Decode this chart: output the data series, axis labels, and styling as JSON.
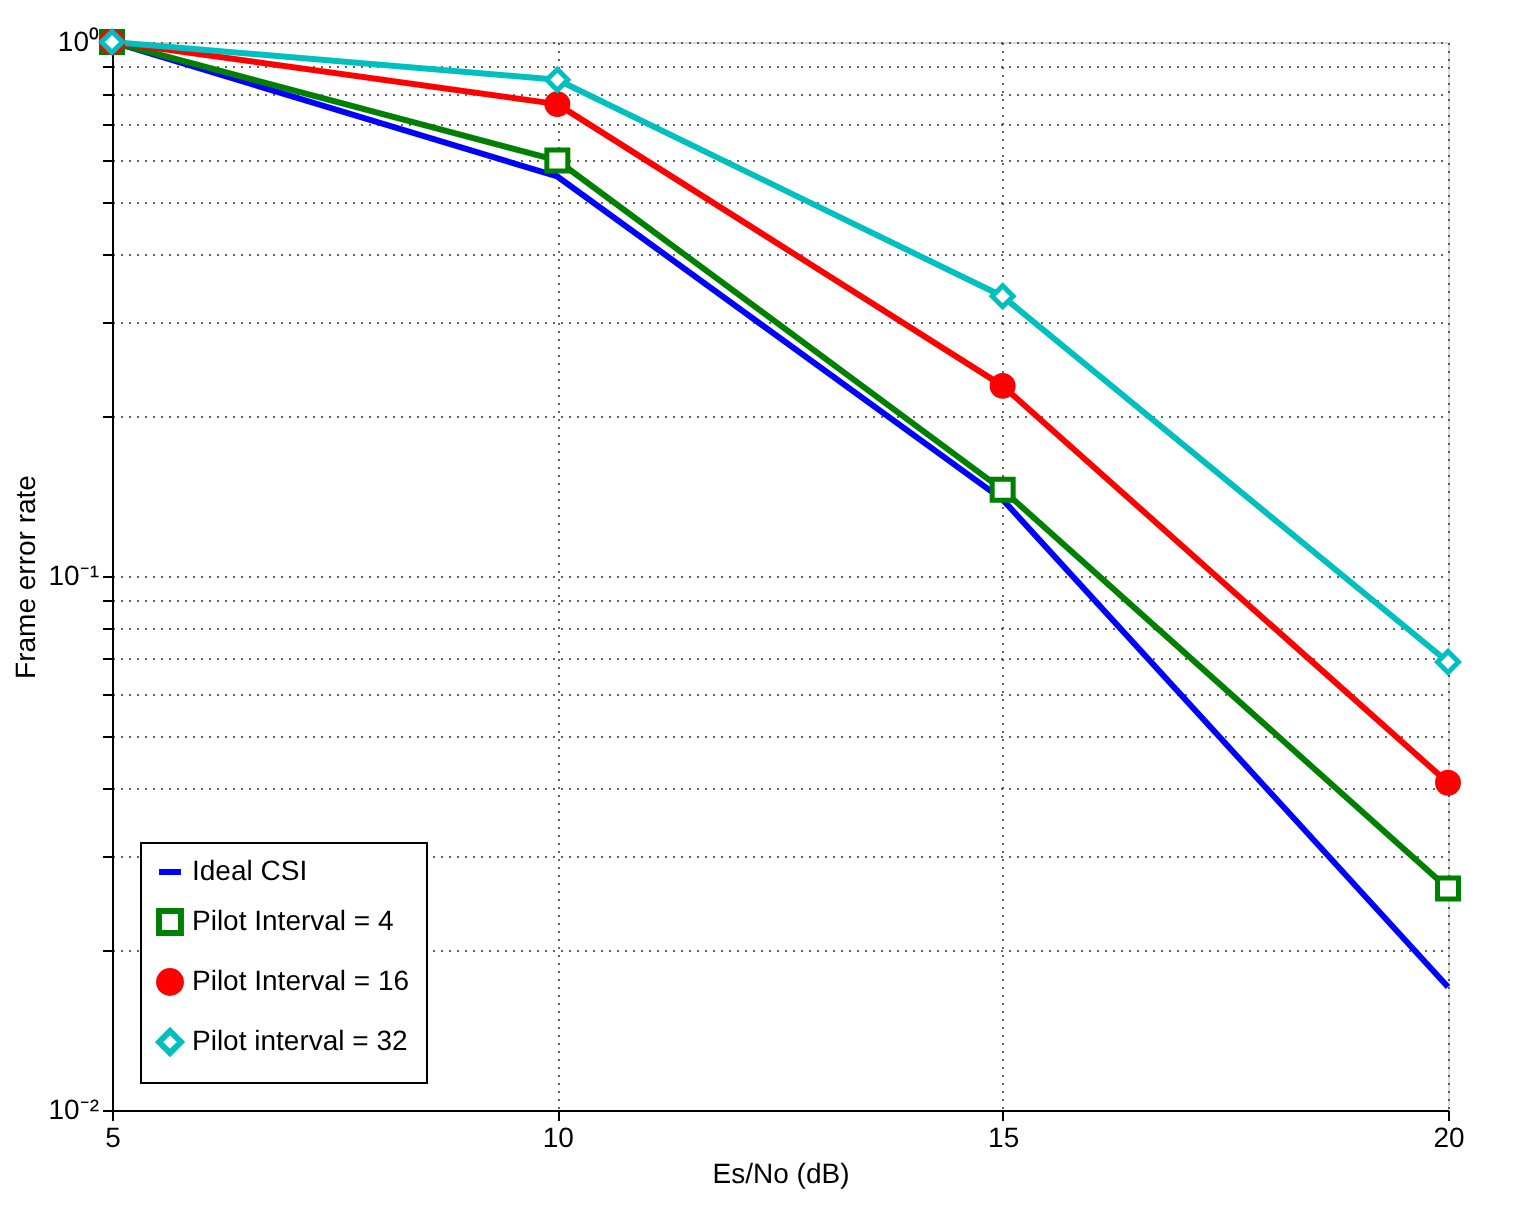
{
  "chart_data": {
    "type": "line",
    "xlabel": "Es/No (dB)",
    "ylabel": "Frame error rate",
    "x": [
      5,
      10,
      15,
      20
    ],
    "series": [
      {
        "name": "Ideal CSI",
        "color": "#0000ff",
        "marker": "none",
        "values": [
          1.0,
          0.56,
          0.139,
          0.017
        ]
      },
      {
        "name": "Pilot Interval = 4",
        "color": "#008000",
        "marker": "square",
        "values": [
          1.0,
          0.6,
          0.145,
          0.026
        ]
      },
      {
        "name": "Pilot Interval = 16",
        "color": "#ff0000",
        "marker": "circle",
        "values": [
          1.0,
          0.765,
          0.227,
          0.041
        ]
      },
      {
        "name": "Pilot interval = 32",
        "color": "#00bfbf",
        "marker": "diamond",
        "values": [
          1.0,
          0.85,
          0.334,
          0.069
        ]
      }
    ],
    "log": true,
    "xlim": [
      5,
      20
    ],
    "xticks": [
      5,
      10,
      15,
      20
    ],
    "ylim": [
      0.01,
      1
    ],
    "yticks": [
      {
        "value": 0.01,
        "label": "10⁻²"
      },
      {
        "value": 0.02,
        "label": null
      },
      {
        "value": 0.03,
        "label": null
      },
      {
        "value": 0.04,
        "label": null
      },
      {
        "value": 0.05,
        "label": null
      },
      {
        "value": 0.06,
        "label": null
      },
      {
        "value": 0.07,
        "label": null
      },
      {
        "value": 0.08,
        "label": null
      },
      {
        "value": 0.09,
        "label": null
      },
      {
        "value": 0.1,
        "label": "10⁻¹"
      },
      {
        "value": 0.2,
        "label": null
      },
      {
        "value": 0.3,
        "label": null
      },
      {
        "value": 0.4,
        "label": null
      },
      {
        "value": 0.5,
        "label": null
      },
      {
        "value": 0.6,
        "label": null
      },
      {
        "value": 0.7,
        "label": null
      },
      {
        "value": 0.8,
        "label": null
      },
      {
        "value": 0.9,
        "label": null
      },
      {
        "value": 1,
        "label": "10⁰"
      }
    ],
    "grid": true,
    "legend": "bottom left",
    "line_style": "solid"
  }
}
